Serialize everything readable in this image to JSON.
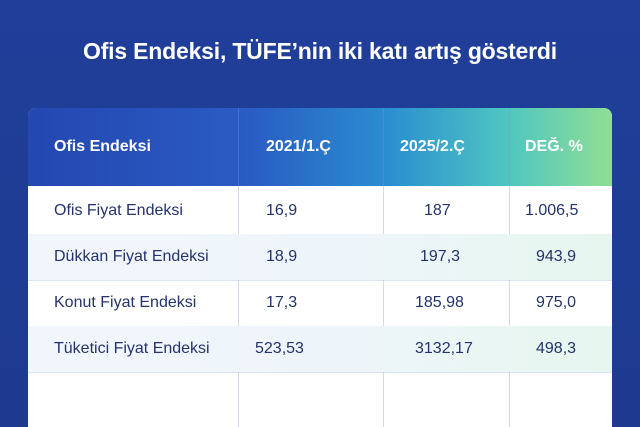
{
  "headline": "Ofis Endeksi, TÜFE’nin iki katı artış gösterdi",
  "table": {
    "headers": [
      "Ofis Endeksi",
      "2021/1.Ç",
      "2025/2.Ç",
      "DEĞ. %"
    ],
    "rows": [
      [
        "Ofis Fiyat Endeksi",
        "16,9",
        "187",
        "1.006,5"
      ],
      [
        "Dükkan Fiyat Endeksi",
        "18,9",
        "197,3",
        "943,9"
      ],
      [
        "Konut Fiyat Endeksi",
        "17,3",
        "185,98",
        "975,0"
      ],
      [
        "Tüketici Fiyat Endeksi",
        "523,53",
        "3132,17",
        "498,3"
      ]
    ]
  },
  "colors": {
    "background": "#1f3d95",
    "header_gradient_start": "#2447b0",
    "header_gradient_end": "#8fdf92",
    "text": "#24336b"
  }
}
